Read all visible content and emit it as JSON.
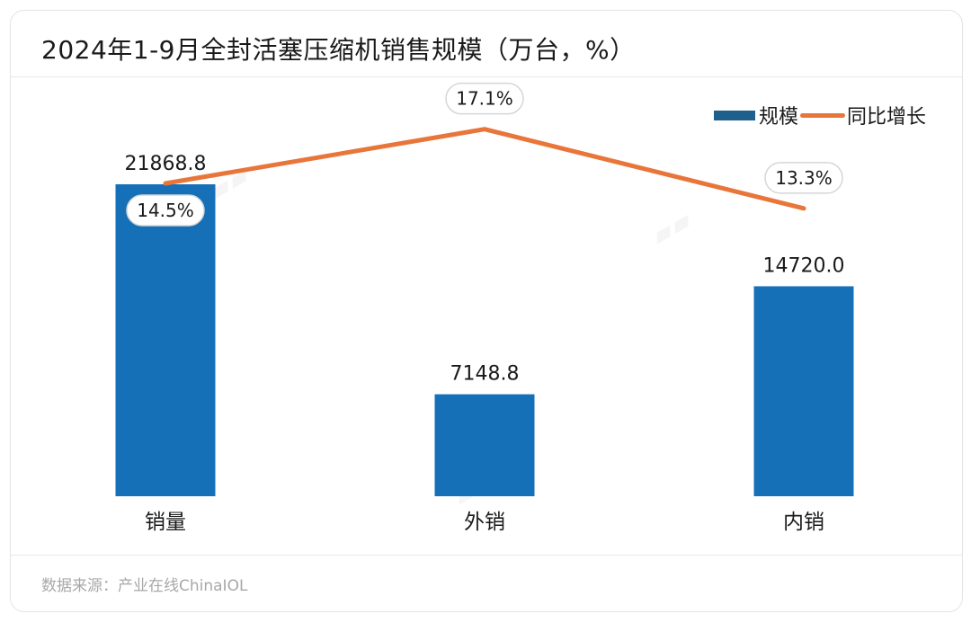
{
  "title": "2024年1-9月全封活塞压缩机销售规模（万台，%）",
  "source": "数据来源：产业在线ChinaIOL",
  "colors": {
    "bar": "#1570b8",
    "legend_bar": "#1f5f8b",
    "line": "#e8763a"
  },
  "chart_data": {
    "type": "bar",
    "categories": [
      "销量",
      "外销",
      "内销"
    ],
    "series": [
      {
        "name": "规模",
        "type": "bar",
        "values": [
          21868.8,
          7148.8,
          14720.0
        ],
        "labels": [
          "21868.8",
          "7148.8",
          "14720.0"
        ]
      },
      {
        "name": "同比增长",
        "type": "line",
        "values": [
          14.5,
          17.1,
          13.3
        ],
        "labels": [
          "14.5%",
          "17.1%",
          "13.3%"
        ]
      }
    ],
    "legend": "top-right",
    "grid": false
  }
}
